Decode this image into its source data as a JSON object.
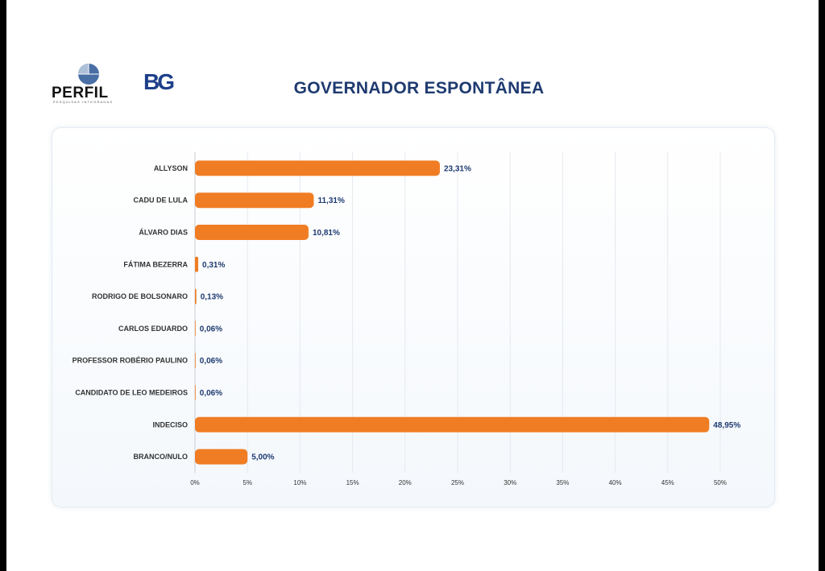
{
  "header": {
    "perfil_logo_text": "PERFIL",
    "perfil_logo_sub": "PESQUISAS INTEGRADAS",
    "bg_logo_text": "BG",
    "title": "GOVERNADOR ESPONTÂNEA"
  },
  "colors": {
    "bar": "#f07d23",
    "title": "#1e3a70",
    "value": "#1e3a70"
  },
  "chart_data": {
    "type": "bar",
    "orientation": "horizontal",
    "categories": [
      "ALLYSON",
      "CADU DE LULA",
      "ÁLVARO DIAS",
      "FÁTIMA BEZERRA",
      "RODRIGO DE BOLSONARO",
      "CARLOS EDUARDO",
      "PROFESSOR ROBÉRIO PAULINO",
      "CANDIDATO DE LEO MEDEIROS",
      "INDECISO",
      "BRANCO/NULO"
    ],
    "values": [
      23.31,
      11.31,
      10.81,
      0.31,
      0.13,
      0.06,
      0.06,
      0.06,
      48.95,
      5.0
    ],
    "value_labels": [
      "23,31%",
      "11,31%",
      "10,81%",
      "0,31%",
      "0,13%",
      "0,06%",
      "0,06%",
      "0,06%",
      "48,95%",
      "5,00%"
    ],
    "xlim": [
      0,
      50
    ],
    "x_ticks": [
      0,
      5,
      10,
      15,
      20,
      25,
      30,
      35,
      40,
      45,
      50
    ],
    "x_tick_labels": [
      "0%",
      "5%",
      "10%",
      "15%",
      "20%",
      "25%",
      "30%",
      "35%",
      "40%",
      "45%",
      "50%"
    ],
    "title": "GOVERNADOR ESPONTÂNEA",
    "xlabel": "",
    "ylabel": "",
    "grid": true,
    "legend": "none"
  }
}
